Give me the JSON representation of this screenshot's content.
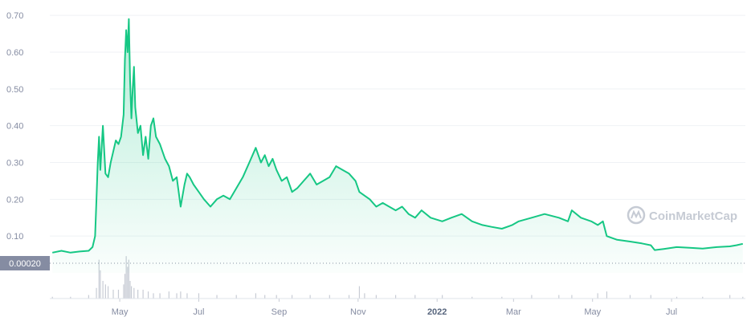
{
  "watermark": "CoinMarketCap",
  "colors": {
    "line": "#16c784",
    "fill_top": "#16c784",
    "grid": "#eff2f5",
    "volume": "#c8ccd5",
    "label_bg": "#858ca2"
  },
  "chart_data": {
    "type": "area",
    "title": "",
    "xlabel": "",
    "ylabel": "",
    "ylim": [
      0,
      0.72
    ],
    "yticks": [
      "0.10",
      "0.20",
      "0.30",
      "0.40",
      "0.50",
      "0.60",
      "0.70"
    ],
    "xticks": [
      "May",
      "Jul",
      "Sep",
      "Nov",
      "2022",
      "Mar",
      "May",
      "Jul"
    ],
    "xticks_bold": [
      "2022"
    ],
    "grid": true,
    "series": [
      {
        "kind": "price",
        "x": [
          "2021-03-10",
          "2021-03-17",
          "2021-03-24",
          "2021-03-31",
          "2021-04-07",
          "2021-04-10",
          "2021-04-12",
          "2021-04-13",
          "2021-04-14",
          "2021-04-15",
          "2021-04-16",
          "2021-04-18",
          "2021-04-20",
          "2021-04-22",
          "2021-04-24",
          "2021-04-26",
          "2021-04-28",
          "2021-04-30",
          "2021-05-02",
          "2021-05-04",
          "2021-05-05",
          "2021-05-06",
          "2021-05-07",
          "2021-05-08",
          "2021-05-09",
          "2021-05-10",
          "2021-05-11",
          "2021-05-12",
          "2021-05-13",
          "2021-05-15",
          "2021-05-17",
          "2021-05-19",
          "2021-05-21",
          "2021-05-23",
          "2021-05-25",
          "2021-05-27",
          "2021-05-29",
          "2021-06-01",
          "2021-06-03",
          "2021-06-05",
          "2021-06-08",
          "2021-06-11",
          "2021-06-14",
          "2021-06-17",
          "2021-06-20",
          "2021-06-22",
          "2021-06-24",
          "2021-06-27",
          "2021-07-01",
          "2021-07-05",
          "2021-07-10",
          "2021-07-15",
          "2021-07-20",
          "2021-07-25",
          "2021-07-30",
          "2021-08-04",
          "2021-08-09",
          "2021-08-14",
          "2021-08-18",
          "2021-08-21",
          "2021-08-24",
          "2021-08-27",
          "2021-08-30",
          "2021-09-03",
          "2021-09-07",
          "2021-09-11",
          "2021-09-15",
          "2021-09-20",
          "2021-09-25",
          "2021-09-30",
          "2021-10-05",
          "2021-10-10",
          "2021-10-15",
          "2021-10-20",
          "2021-10-25",
          "2021-10-30",
          "2021-11-02",
          "2021-11-06",
          "2021-11-10",
          "2021-11-15",
          "2021-11-20",
          "2021-11-25",
          "2021-11-30",
          "2021-12-05",
          "2021-12-10",
          "2021-12-15",
          "2021-12-20",
          "2021-12-27",
          "2022-01-05",
          "2022-01-12",
          "2022-01-20",
          "2022-01-28",
          "2022-02-05",
          "2022-02-12",
          "2022-02-20",
          "2022-02-28",
          "2022-03-05",
          "2022-03-15",
          "2022-03-25",
          "2022-04-05",
          "2022-04-12",
          "2022-04-15",
          "2022-04-22",
          "2022-04-30",
          "2022-05-05",
          "2022-05-09",
          "2022-05-12",
          "2022-05-20",
          "2022-05-30",
          "2022-06-08",
          "2022-06-15",
          "2022-06-18",
          "2022-06-25",
          "2022-07-05",
          "2022-07-15",
          "2022-07-25",
          "2022-08-05",
          "2022-08-15",
          "2022-08-20",
          "2022-08-25"
        ],
        "values": [
          0.055,
          0.06,
          0.055,
          0.058,
          0.06,
          0.07,
          0.1,
          0.2,
          0.3,
          0.37,
          0.28,
          0.4,
          0.27,
          0.26,
          0.3,
          0.33,
          0.36,
          0.35,
          0.37,
          0.43,
          0.58,
          0.66,
          0.6,
          0.69,
          0.52,
          0.42,
          0.5,
          0.56,
          0.45,
          0.38,
          0.4,
          0.32,
          0.37,
          0.31,
          0.4,
          0.42,
          0.37,
          0.35,
          0.33,
          0.31,
          0.29,
          0.25,
          0.26,
          0.18,
          0.24,
          0.27,
          0.26,
          0.24,
          0.22,
          0.2,
          0.18,
          0.2,
          0.21,
          0.2,
          0.23,
          0.26,
          0.3,
          0.34,
          0.3,
          0.32,
          0.29,
          0.31,
          0.28,
          0.25,
          0.26,
          0.22,
          0.23,
          0.25,
          0.27,
          0.24,
          0.25,
          0.26,
          0.29,
          0.28,
          0.27,
          0.25,
          0.22,
          0.21,
          0.2,
          0.18,
          0.19,
          0.18,
          0.17,
          0.18,
          0.16,
          0.15,
          0.17,
          0.15,
          0.14,
          0.15,
          0.16,
          0.14,
          0.13,
          0.125,
          0.12,
          0.13,
          0.14,
          0.15,
          0.16,
          0.15,
          0.14,
          0.17,
          0.15,
          0.14,
          0.13,
          0.14,
          0.1,
          0.09,
          0.085,
          0.08,
          0.075,
          0.062,
          0.065,
          0.07,
          0.068,
          0.066,
          0.07,
          0.072,
          0.075,
          0.079
        ]
      },
      {
        "kind": "volume",
        "label": "0.00020",
        "x": [
          "2021-03-10",
          "2021-03-24",
          "2021-04-07",
          "2021-04-13",
          "2021-04-15",
          "2021-04-16",
          "2021-04-18",
          "2021-04-20",
          "2021-04-22",
          "2021-04-26",
          "2021-04-30",
          "2021-05-04",
          "2021-05-05",
          "2021-05-06",
          "2021-05-07",
          "2021-05-08",
          "2021-05-09",
          "2021-05-10",
          "2021-05-12",
          "2021-05-15",
          "2021-05-19",
          "2021-05-23",
          "2021-05-27",
          "2021-06-01",
          "2021-06-08",
          "2021-06-14",
          "2021-06-17",
          "2021-06-22",
          "2021-07-01",
          "2021-07-15",
          "2021-07-30",
          "2021-08-14",
          "2021-08-21",
          "2021-08-30",
          "2021-09-11",
          "2021-09-25",
          "2021-10-10",
          "2021-10-25",
          "2021-11-02",
          "2021-11-06",
          "2021-11-15",
          "2021-11-30",
          "2021-12-15",
          "2022-01-05",
          "2022-01-28",
          "2022-02-20",
          "2022-03-15",
          "2022-04-05",
          "2022-04-15",
          "2022-05-05",
          "2022-05-12",
          "2022-05-30",
          "2022-06-15",
          "2022-07-05",
          "2022-07-25",
          "2022-08-15",
          "2022-08-25"
        ],
        "values": [
          1e-05,
          1e-05,
          2e-05,
          6e-05,
          0.00022,
          0.00016,
          0.0001,
          8e-05,
          7e-05,
          5e-05,
          5e-05,
          8e-05,
          0.00014,
          0.00024,
          0.00018,
          0.00022,
          0.0001,
          7e-05,
          6e-05,
          5e-05,
          5e-05,
          4e-05,
          3e-05,
          3e-05,
          4e-05,
          3e-05,
          4e-05,
          3e-05,
          3e-05,
          2e-05,
          2e-05,
          3e-05,
          2e-05,
          2e-05,
          2e-05,
          2e-05,
          2e-05,
          2e-05,
          7e-05,
          3e-05,
          2e-05,
          2e-05,
          2e-05,
          2e-05,
          1e-05,
          1e-05,
          2e-05,
          2e-05,
          2e-05,
          3e-05,
          4e-05,
          2e-05,
          2e-05,
          1e-05,
          1e-05,
          2e-05,
          1e-05
        ]
      }
    ]
  }
}
